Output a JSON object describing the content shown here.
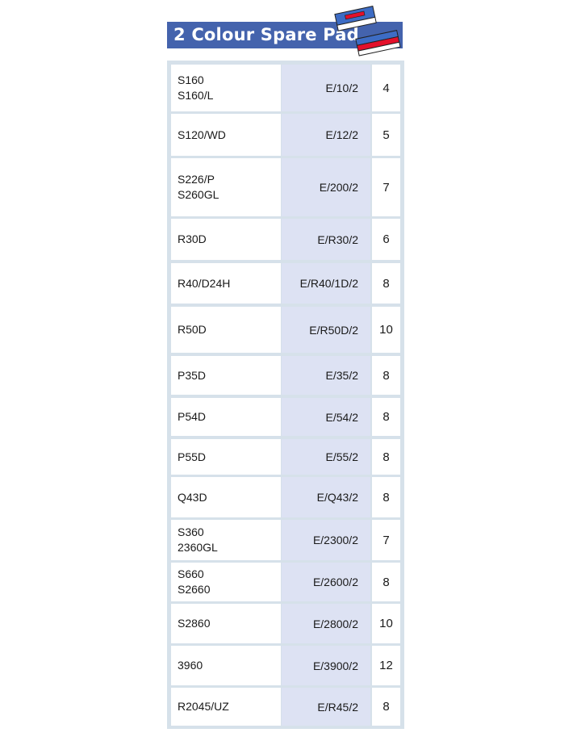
{
  "header": {
    "title": "2 Colour Spare Pad",
    "colors": {
      "bar": "#4463ad",
      "pad_blue": "#3d6cc4",
      "pad_red": "#e3102a"
    }
  },
  "rows": [
    {
      "models": [
        "S160",
        "S160/L"
      ],
      "pad": "E/10/2",
      "qty": "4"
    },
    {
      "models": [
        "S120/WD"
      ],
      "pad": "E/12/2",
      "qty": "5"
    },
    {
      "models": [
        "S226/P",
        "S260GL"
      ],
      "pad": "E/200/2",
      "qty": "7"
    },
    {
      "models": [
        "R30D"
      ],
      "pad": "E/R30/2",
      "qty": "6"
    },
    {
      "models": [
        "R40/D24H"
      ],
      "pad": "E/R40/1D/2",
      "qty": "8"
    },
    {
      "models": [
        "R50D"
      ],
      "pad": "E/R50D/2",
      "qty": "10"
    },
    {
      "models": [
        "P35D"
      ],
      "pad": "E/35/2",
      "qty": "8"
    },
    {
      "models": [
        "P54D"
      ],
      "pad": "E/54/2",
      "qty": "8"
    },
    {
      "models": [
        "P55D"
      ],
      "pad": "E/55/2",
      "qty": "8"
    },
    {
      "models": [
        "Q43D"
      ],
      "pad": "E/Q43/2",
      "qty": "8"
    },
    {
      "models": [
        "S360",
        "2360GL"
      ],
      "pad": "E/2300/2",
      "qty": "7"
    },
    {
      "models": [
        "S660",
        "S2660"
      ],
      "pad": "E/2600/2",
      "qty": "8"
    },
    {
      "models": [
        "S2860"
      ],
      "pad": "E/2800/2",
      "qty": "10"
    },
    {
      "models": [
        "3960"
      ],
      "pad": "E/3900/2",
      "qty": "12"
    },
    {
      "models": [
        "R2045/UZ"
      ],
      "pad": "E/R45/2",
      "qty": "8"
    }
  ]
}
